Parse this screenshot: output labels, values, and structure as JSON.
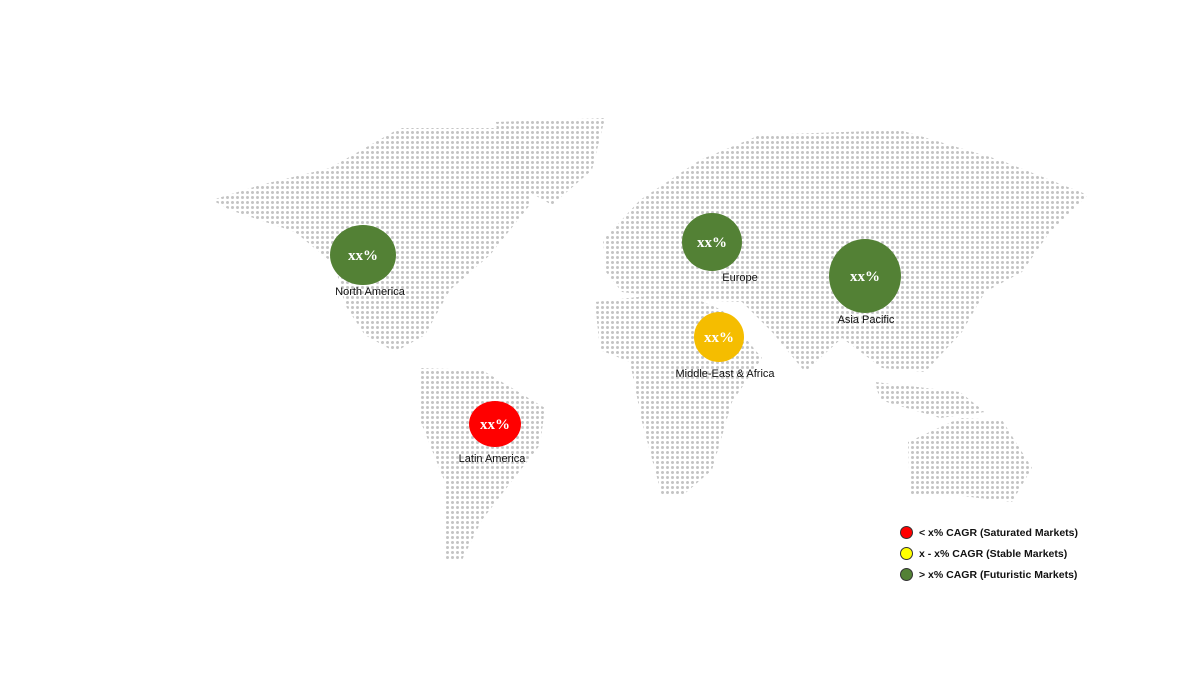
{
  "regions": [
    {
      "name": "North America",
      "value": "xx%",
      "category": "futuristic",
      "color": "#538135"
    },
    {
      "name": "Europe",
      "value": "xx%",
      "category": "futuristic",
      "color": "#538135"
    },
    {
      "name": "Asia Pacific",
      "value": "xx%",
      "category": "futuristic",
      "color": "#538135"
    },
    {
      "name": "Middle-East & Africa",
      "value": "xx%",
      "category": "stable",
      "color": "#f5bd00"
    },
    {
      "name": "Latin America",
      "value": "xx%",
      "category": "saturated",
      "color": "#ff0000"
    }
  ],
  "legend": [
    {
      "label": "< x% CAGR (Saturated Markets)",
      "color": "#ff0000"
    },
    {
      "label": "x - x% CAGR (Stable Markets)",
      "color": "#ffff00"
    },
    {
      "label": "> x% CAGR (Futuristic Markets)",
      "color": "#538135"
    }
  ],
  "map_dot_color": "#c4c4c4"
}
